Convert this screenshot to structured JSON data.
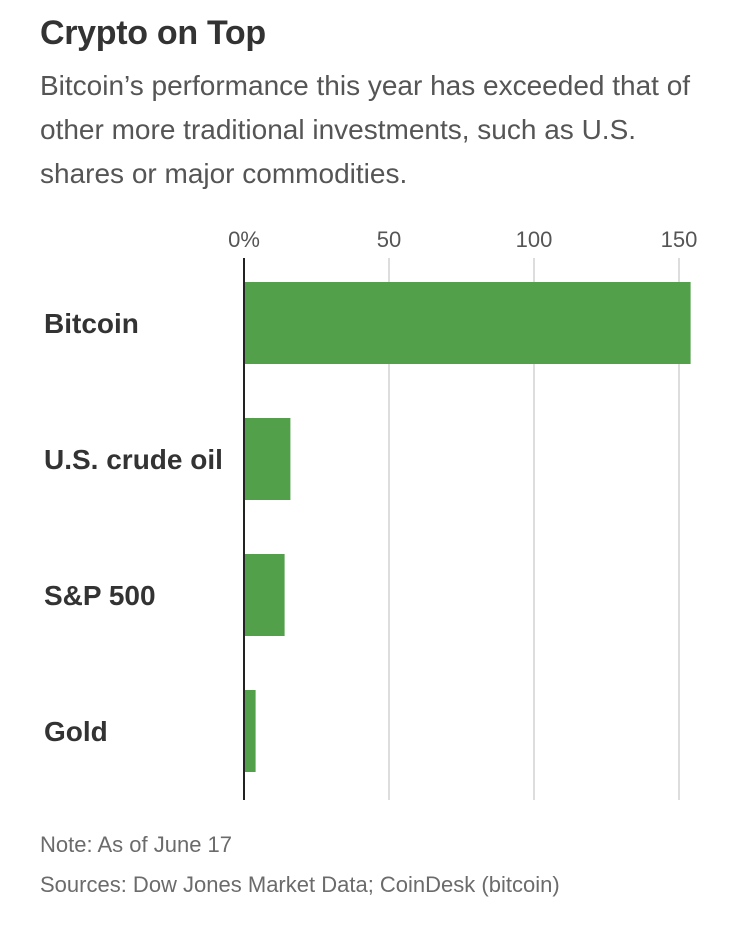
{
  "header": {
    "title": "Crypto on Top",
    "subtitle": "Bitcoin’s performance this year has exceeded that of other more traditional investments, such as U.S. shares or major commodities."
  },
  "chart_data": {
    "type": "bar",
    "orientation": "horizontal",
    "categories": [
      "Bitcoin",
      "U.S. crude oil",
      "S&P 500",
      "Gold"
    ],
    "values": [
      154,
      16,
      14,
      4
    ],
    "xlim": [
      0,
      150
    ],
    "ticks": [
      0,
      50,
      100,
      150
    ],
    "tick_labels": [
      "0%",
      "50",
      "100",
      "150"
    ],
    "grid": true,
    "bar_color": "#52a049"
  },
  "footer": {
    "note": "Note: As of June 17",
    "sources": "Sources: Dow Jones Market Data; CoinDesk (bitcoin)"
  }
}
